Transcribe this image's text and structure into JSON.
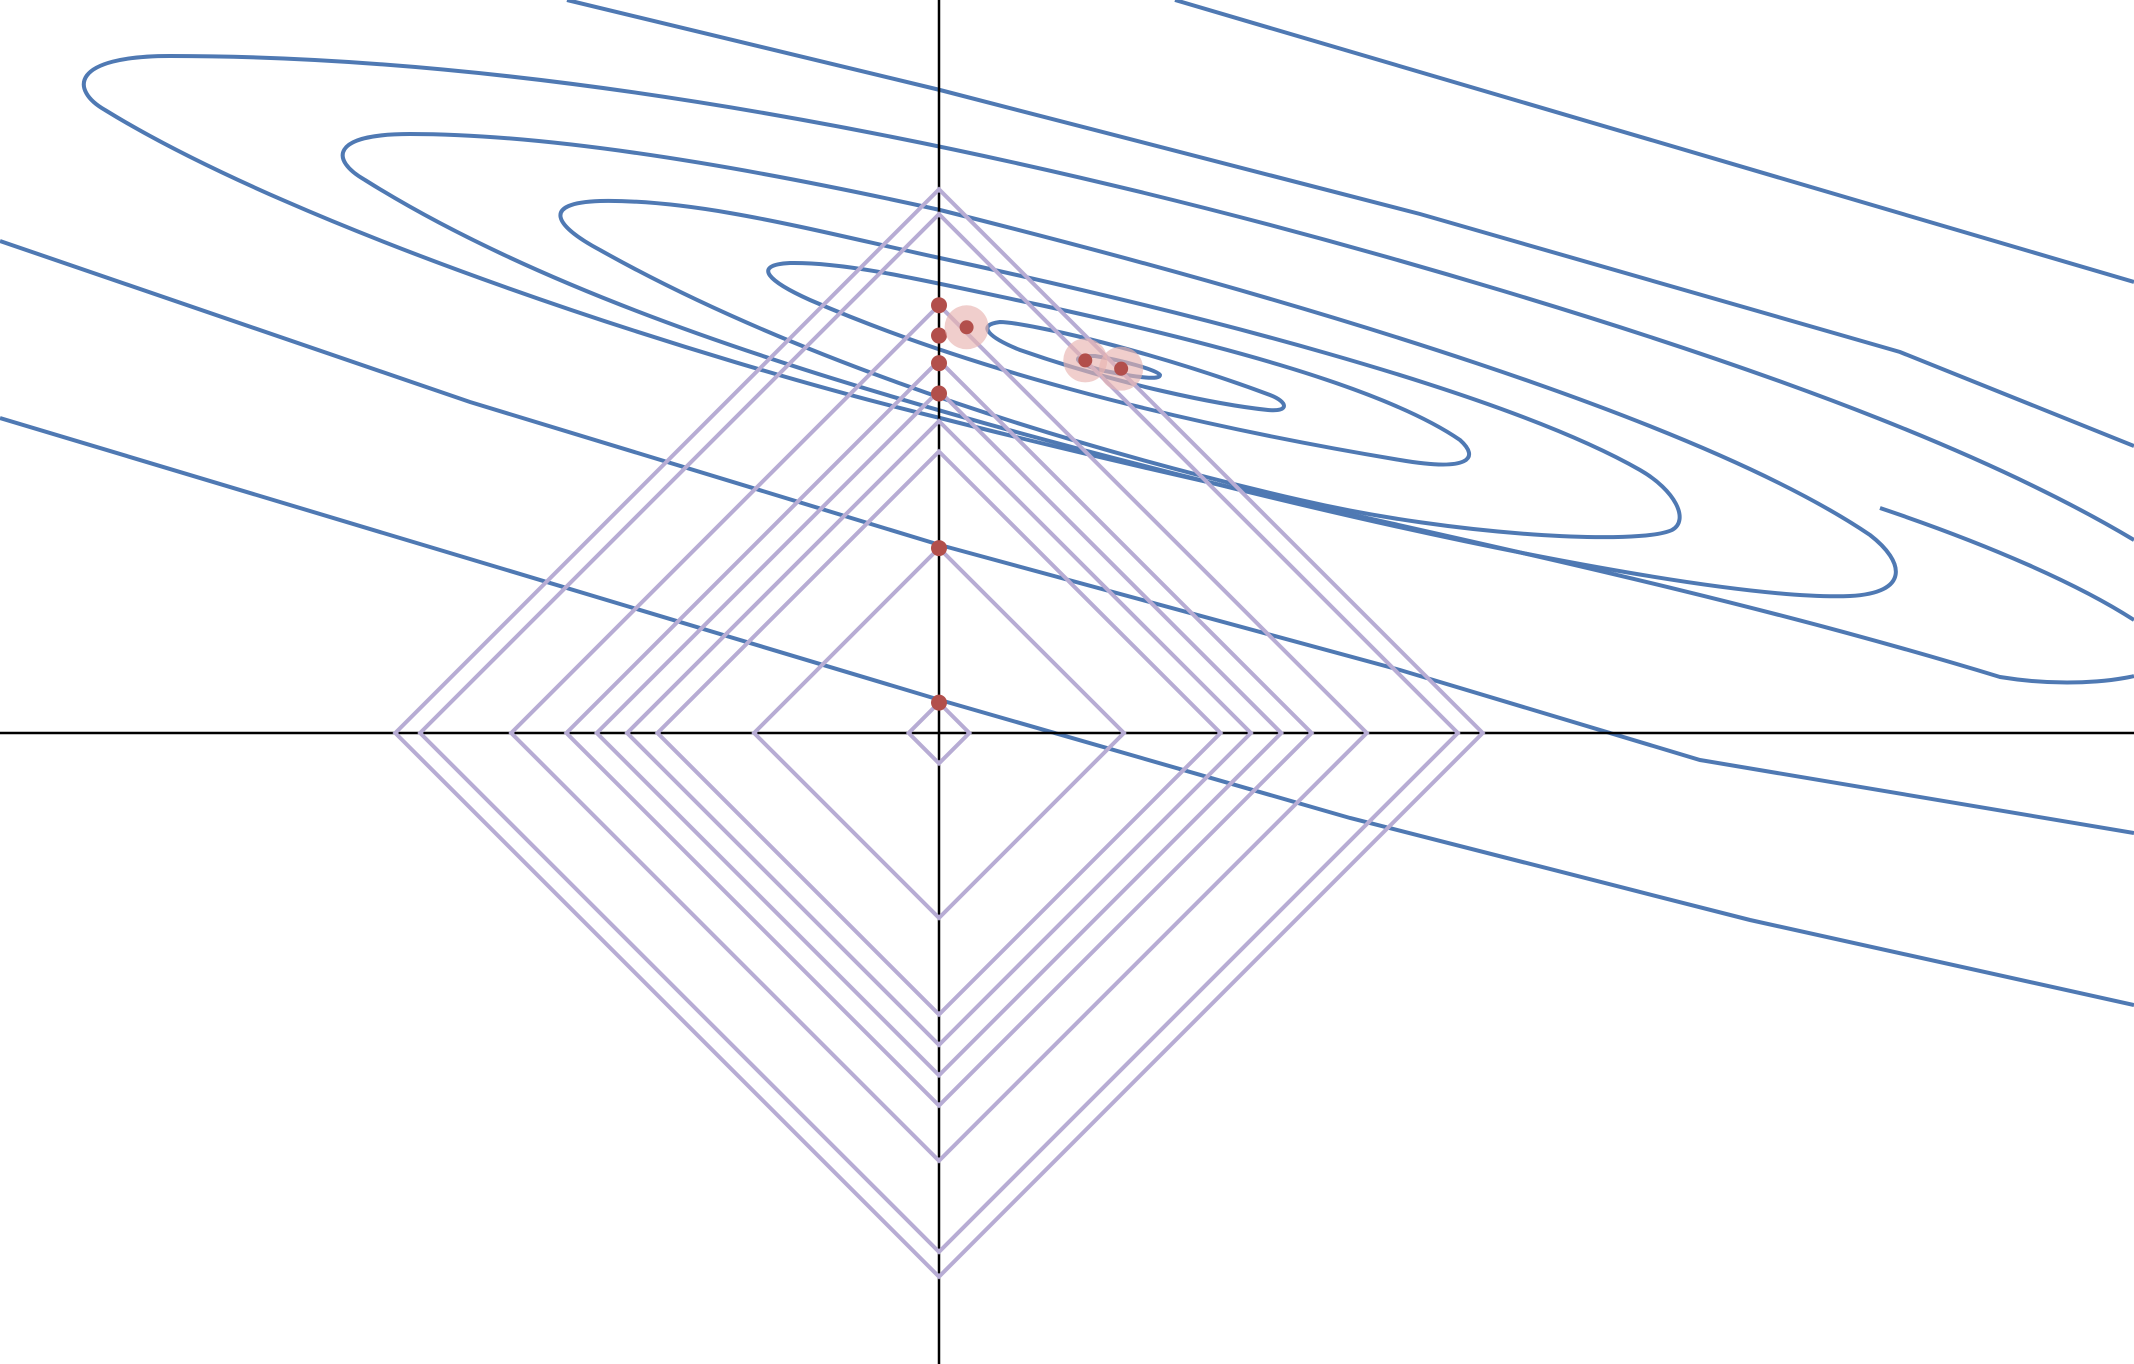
{
  "colors": {
    "background": "#ffffff",
    "axes": "#000000",
    "contour": "#4f79b3",
    "l1_ball": "#b7acd4",
    "solution_point": "#b24f4b",
    "halo": "#e8b4b0"
  },
  "l1_ball_radii": [
    0.11,
    0.67,
    1.02,
    1.13,
    1.24,
    1.35,
    1.55,
    1.88,
    1.97
  ],
  "axis_points": [
    0.11,
    0.67,
    1.23,
    1.34,
    1.44,
    1.55
  ],
  "off_axis_points": [
    {
      "x": 0.1,
      "y": 1.47,
      "halo": true
    },
    {
      "x": 0.53,
      "y": 1.35,
      "halo": true
    },
    {
      "x": 0.66,
      "y": 1.32,
      "halo": true
    }
  ]
}
